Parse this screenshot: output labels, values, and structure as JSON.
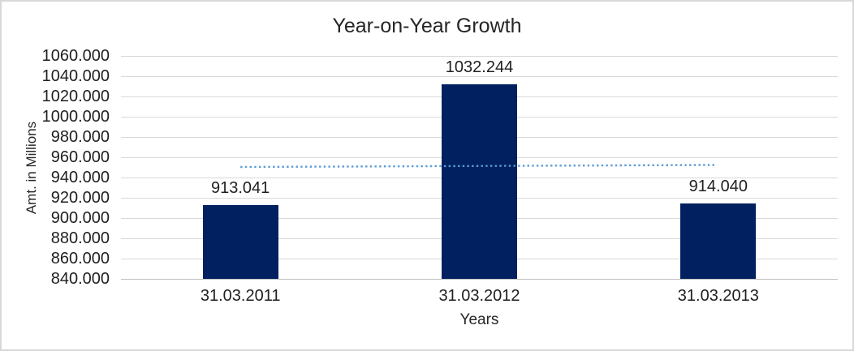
{
  "chart_data": {
    "type": "bar",
    "title": "Year-on-Year Growth",
    "xlabel": "Years",
    "ylabel": "Amt. in Millions",
    "categories": [
      "31.03.2011",
      "31.03.2012",
      "31.03.2013"
    ],
    "values": [
      913.041,
      1032.244,
      914.04
    ],
    "value_labels": [
      "913.041",
      "1032.244",
      "914.040"
    ],
    "ylim": [
      840,
      1060
    ],
    "y_tick_step": 20,
    "y_ticks": [
      {
        "label": "1060.000",
        "value": 1060
      },
      {
        "label": "1040.000",
        "value": 1040
      },
      {
        "label": "1020.000",
        "value": 1020
      },
      {
        "label": "1000.000",
        "value": 1000
      },
      {
        "label": "980.000",
        "value": 980
      },
      {
        "label": "960.000",
        "value": 960
      },
      {
        "label": "940.000",
        "value": 940
      },
      {
        "label": "920.000",
        "value": 920
      },
      {
        "label": "900.000",
        "value": 900
      },
      {
        "label": "880.000",
        "value": 880
      },
      {
        "label": "860.000",
        "value": 860
      },
      {
        "label": "840.000",
        "value": 840
      }
    ],
    "grid": true,
    "legend": false,
    "trendline": {
      "style": "dotted",
      "start_value": 950.4,
      "end_value": 952.4
    },
    "colors": {
      "bar": "#002060",
      "trendline": "#5B9BD5",
      "gridline": "#d9d9d9",
      "axis_line": "#bfbfbf",
      "text": "#1f1f1f"
    }
  }
}
